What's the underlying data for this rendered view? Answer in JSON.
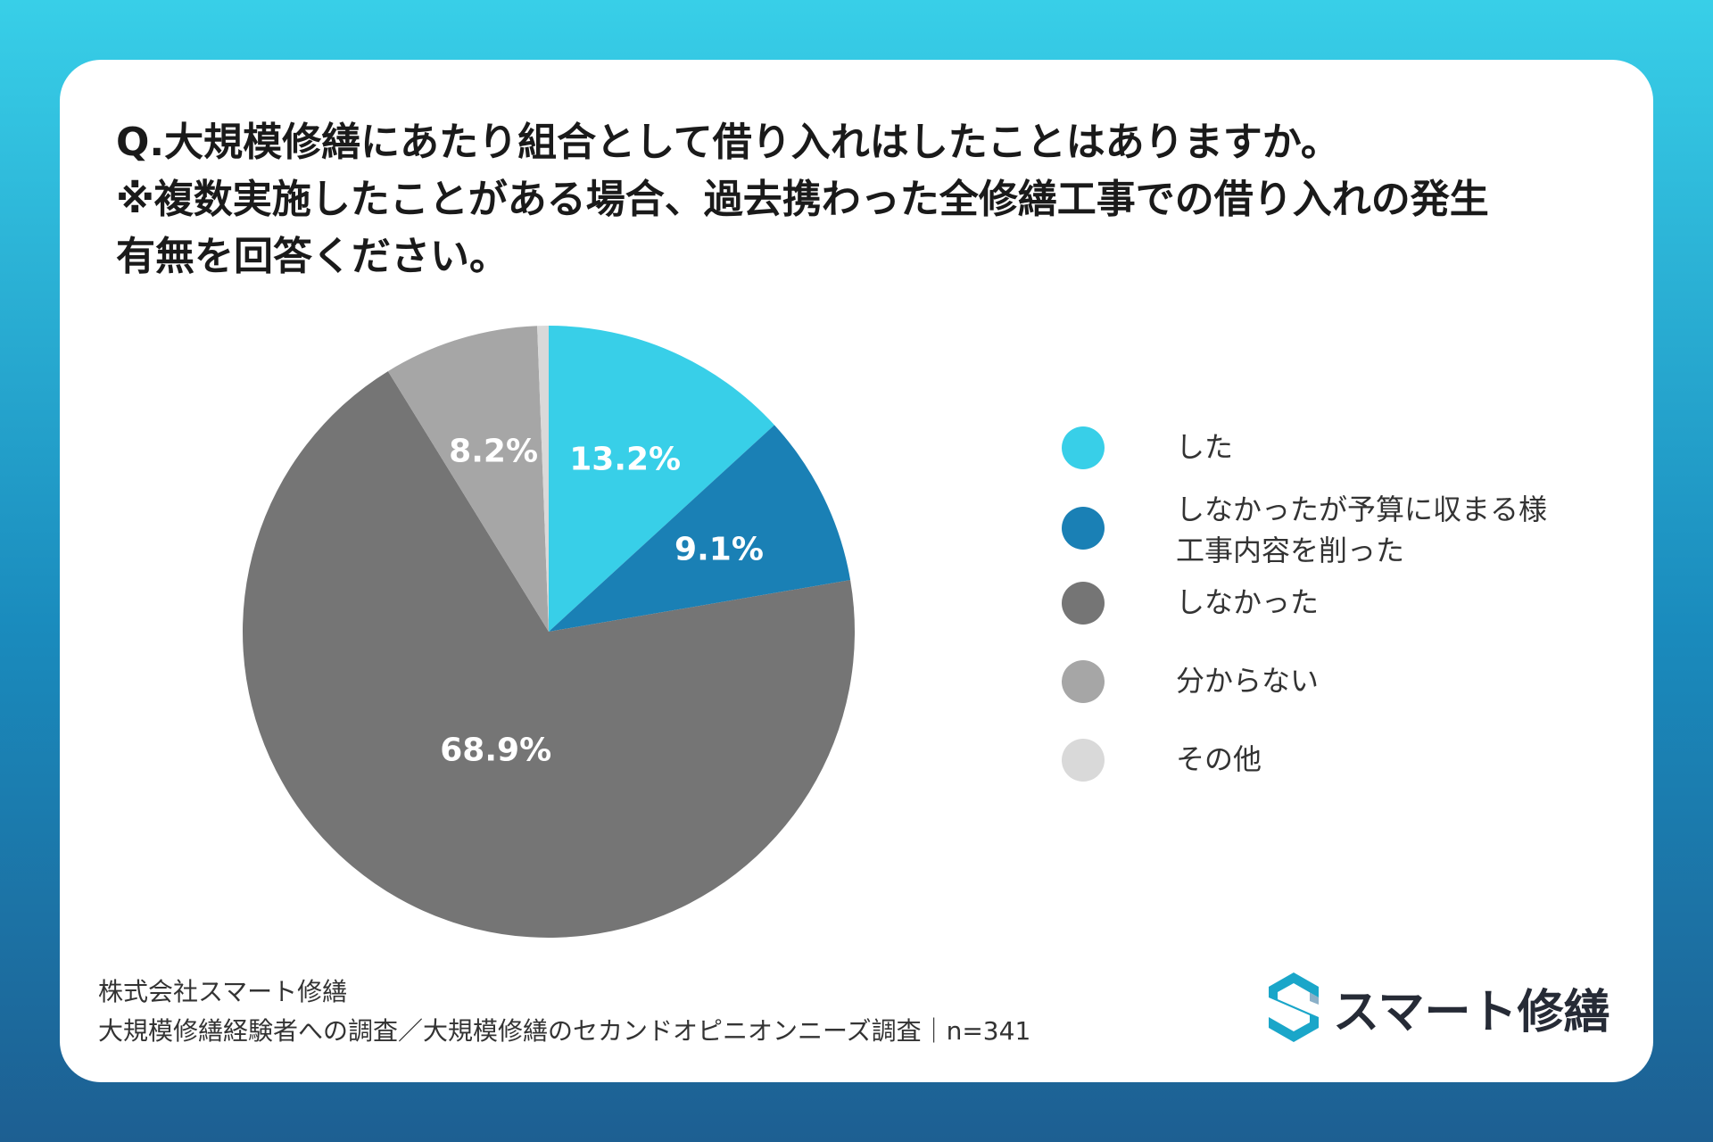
{
  "title_lines": [
    "Q.大規模修繕にあたり組合として借り入れはしたことはありますか。",
    "※複数実施したことがある場合、過去携わった全修繕工事での借り入れの発生",
    "有無を回答ください。"
  ],
  "chart_data": {
    "type": "pie",
    "title": "Q.大規模修繕にあたり組合として借り入れはしたことはありますか。",
    "categories": [
      "した",
      "しなかったが予算に収まる様\n工事内容を削った",
      "しなかった",
      "分からない",
      "その他"
    ],
    "values": [
      13.2,
      9.1,
      68.9,
      8.2,
      0.6
    ],
    "labels": [
      "13.2%",
      "9.1%",
      "68.9%",
      "8.2%",
      ""
    ],
    "colors": [
      "#38cfe8",
      "#1a80b5",
      "#757575",
      "#a6a6a6",
      "#d9d9d9"
    ],
    "legend_position": "right"
  },
  "footer": {
    "company": "株式会社スマート修繕",
    "survey": "大規模修繕経験者への調査／大規模修繕のセカンドオピニオンニーズ調査｜n=341"
  },
  "logo": {
    "text": "スマート修繕",
    "icon": "s-logo-icon"
  }
}
